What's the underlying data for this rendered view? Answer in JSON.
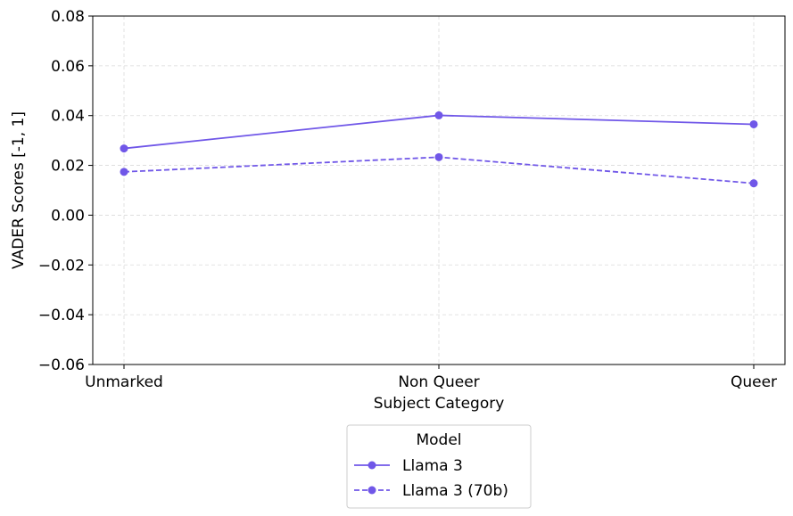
{
  "chart_data": {
    "type": "line",
    "categories": [
      "Unmarked",
      "Non Queer",
      "Queer"
    ],
    "series": [
      {
        "name": "Llama 3",
        "values": [
          0.0268,
          0.0401,
          0.0365
        ],
        "line_style": "solid",
        "marker": "circle",
        "color": "#7057e8"
      },
      {
        "name": "Llama 3 (70b)",
        "values": [
          0.0174,
          0.0233,
          0.0128
        ],
        "line_style": "dashed",
        "marker": "circle",
        "color": "#7057e8"
      }
    ],
    "xlabel": "Subject Category",
    "ylabel": "VADER Scores [-1, 1]",
    "ylim": [
      -0.06,
      0.08
    ],
    "yticks": [
      -0.06,
      -0.04,
      -0.02,
      0.0,
      0.02,
      0.04,
      0.06,
      0.08
    ],
    "ytick_labels": [
      "−0.06",
      "−0.04",
      "−0.02",
      "0.00",
      "0.02",
      "0.04",
      "0.06",
      "0.08"
    ],
    "grid": true,
    "legend": {
      "title": "Model",
      "placement": "below-center"
    }
  }
}
